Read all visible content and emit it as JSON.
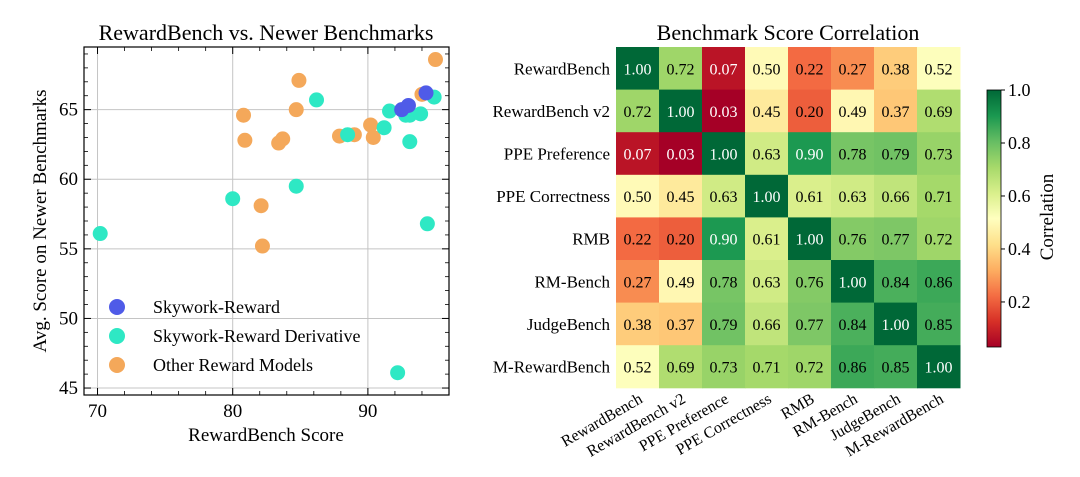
{
  "chart_data": [
    {
      "type": "scatter",
      "title": "RewardBench vs. Newer Benchmarks",
      "xlabel": "RewardBench Score",
      "ylabel": "Avg. Score on Newer Benchmarks",
      "xlim": [
        69,
        96
      ],
      "ylim": [
        44.5,
        69.5
      ],
      "xticks": [
        70,
        80,
        90
      ],
      "yticks": [
        45,
        50,
        55,
        60,
        65
      ],
      "grid": true,
      "legend_position": "lower-left",
      "series": [
        {
          "name": "Skywork-Reward",
          "color": "#4f5be8",
          "points": [
            [
              92.5,
              65.0
            ],
            [
              93.0,
              65.3
            ],
            [
              94.3,
              66.2
            ]
          ]
        },
        {
          "name": "Skywork-Reward Derivative",
          "color": "#2ee8c4",
          "points": [
            [
              70.2,
              56.1
            ],
            [
              80.0,
              58.6
            ],
            [
              84.7,
              59.5
            ],
            [
              86.2,
              65.7
            ],
            [
              88.5,
              63.2
            ],
            [
              91.2,
              63.7
            ],
            [
              91.6,
              64.9
            ],
            [
              92.2,
              46.1
            ],
            [
              92.8,
              64.6
            ],
            [
              93.1,
              64.6
            ],
            [
              93.1,
              62.7
            ],
            [
              93.9,
              64.7
            ],
            [
              94.4,
              56.8
            ],
            [
              94.9,
              65.9
            ]
          ]
        },
        {
          "name": "Other Reward Models",
          "color": "#f4a85a",
          "points": [
            [
              80.8,
              64.6
            ],
            [
              80.9,
              62.8
            ],
            [
              82.1,
              58.1
            ],
            [
              82.2,
              55.2
            ],
            [
              83.4,
              62.6
            ],
            [
              83.7,
              62.9
            ],
            [
              84.7,
              65.0
            ],
            [
              84.9,
              67.1
            ],
            [
              87.9,
              63.1
            ],
            [
              89.0,
              63.2
            ],
            [
              90.2,
              63.9
            ],
            [
              90.4,
              63.0
            ],
            [
              94.0,
              66.1
            ],
            [
              95.0,
              68.6
            ]
          ]
        }
      ]
    },
    {
      "type": "heatmap",
      "title": "Benchmark Score Correlation",
      "labels": [
        "RewardBench",
        "RewardBench v2",
        "PPE Preference",
        "PPE Correctness",
        "RMB",
        "RM-Bench",
        "JudgeBench",
        "M-RewardBench"
      ],
      "values": [
        [
          1.0,
          0.72,
          0.07,
          0.5,
          0.22,
          0.27,
          0.38,
          0.52
        ],
        [
          0.72,
          1.0,
          0.03,
          0.45,
          0.2,
          0.49,
          0.37,
          0.69
        ],
        [
          0.07,
          0.03,
          1.0,
          0.63,
          0.9,
          0.78,
          0.79,
          0.73
        ],
        [
          0.5,
          0.45,
          0.63,
          1.0,
          0.61,
          0.63,
          0.66,
          0.71
        ],
        [
          0.22,
          0.2,
          0.9,
          0.61,
          1.0,
          0.76,
          0.77,
          0.72
        ],
        [
          0.27,
          0.49,
          0.78,
          0.63,
          0.76,
          1.0,
          0.84,
          0.86
        ],
        [
          0.38,
          0.37,
          0.79,
          0.66,
          0.77,
          0.84,
          1.0,
          0.85
        ],
        [
          0.52,
          0.69,
          0.73,
          0.71,
          0.72,
          0.86,
          0.85,
          1.0
        ]
      ],
      "colorbar": {
        "label": "Correlation",
        "range": [
          0.03,
          1.0
        ],
        "ticks": [
          "0.2",
          "0.4",
          "0.6",
          "0.8",
          "1.0"
        ],
        "colormap": "RdYlGn"
      }
    }
  ]
}
